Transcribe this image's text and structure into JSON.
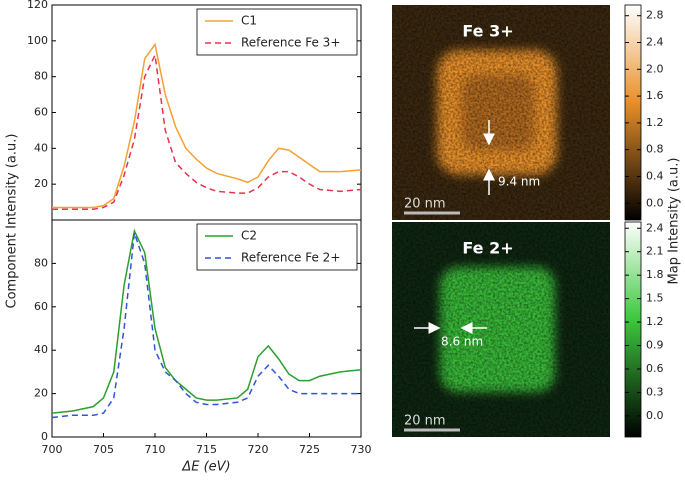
{
  "chart_data": [
    {
      "type": "line",
      "ylabel": "Component Intensity (a.u.)",
      "legend": "upper right",
      "x": [
        700,
        702,
        704,
        705,
        706,
        707,
        708,
        709,
        710,
        711,
        712,
        713,
        714,
        715,
        716,
        718,
        719,
        720,
        721,
        722,
        723,
        724,
        725,
        726,
        728,
        730
      ],
      "xlim": [
        700,
        730
      ],
      "ylim": [
        0,
        120
      ],
      "yticks": [
        20,
        40,
        60,
        80,
        100,
        120
      ],
      "series": [
        {
          "name": "C1",
          "color": "#f5a033",
          "linestyle": "solid",
          "values": [
            7,
            7,
            7,
            8,
            12,
            30,
            55,
            90,
            98,
            70,
            52,
            40,
            34,
            29,
            26,
            23,
            21,
            24,
            33,
            40,
            39,
            35,
            31,
            27,
            27,
            28
          ]
        },
        {
          "name": "Reference Fe 3+",
          "color": "#e8334a",
          "linestyle": "dashed",
          "values": [
            6,
            6,
            6,
            7,
            10,
            25,
            45,
            80,
            92,
            50,
            32,
            26,
            21,
            18,
            16,
            15,
            15,
            18,
            24,
            27,
            27,
            24,
            20,
            17,
            16,
            17
          ]
        }
      ]
    },
    {
      "type": "line",
      "xlabel": "ΔE (eV)",
      "legend": "upper right",
      "x": [
        700,
        702,
        704,
        705,
        706,
        707,
        708,
        709,
        710,
        711,
        712,
        713,
        714,
        715,
        716,
        718,
        719,
        720,
        721,
        722,
        723,
        724,
        725,
        726,
        728,
        730
      ],
      "xlim": [
        700,
        730
      ],
      "xticks": [
        700,
        705,
        710,
        715,
        720,
        725,
        730
      ],
      "ylim": [
        0,
        100
      ],
      "yticks": [
        0,
        20,
        40,
        60,
        80
      ],
      "series": [
        {
          "name": "C2",
          "color": "#2ca02c",
          "linestyle": "solid",
          "values": [
            11,
            12,
            14,
            18,
            30,
            70,
            95,
            85,
            50,
            32,
            26,
            22,
            18,
            17,
            17,
            18,
            22,
            37,
            42,
            36,
            29,
            26,
            26,
            28,
            30,
            31
          ]
        },
        {
          "name": "Reference Fe 2+",
          "color": "#2f54d6",
          "linestyle": "dashed",
          "values": [
            9,
            10,
            10,
            11,
            18,
            50,
            94,
            80,
            40,
            30,
            26,
            20,
            16,
            15,
            15,
            16,
            18,
            28,
            33,
            28,
            22,
            20,
            20,
            20,
            20,
            20
          ]
        }
      ]
    }
  ],
  "colorbar_label": "Map Intensity (a.u.)",
  "maps": [
    {
      "title": "Fe 3+",
      "thickness_label": "9.4 nm",
      "scale_label": "20 nm",
      "color": "#e8902a",
      "clim": [
        -0.25,
        2.96
      ],
      "cticks": [
        {
          "value": 0,
          "label": "0.0"
        },
        0.4,
        0.8,
        1.2,
        1.6,
        {
          "value": 2,
          "label": "2.0"
        },
        2.4,
        2.8
      ]
    },
    {
      "title": "Fe 2+",
      "thickness_label": "8.6 nm",
      "scale_label": "20 nm",
      "color": "#3ec83e",
      "clim": [
        -0.27,
        2.48
      ],
      "cticks": [
        {
          "value": 0,
          "label": "0.0"
        },
        0.3,
        0.6,
        0.9,
        1.2,
        1.5,
        1.8,
        2.1,
        2.4
      ]
    }
  ]
}
